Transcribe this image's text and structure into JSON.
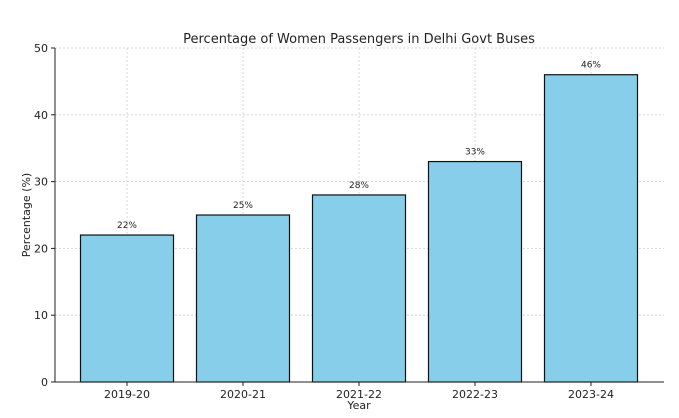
{
  "chart_data": {
    "type": "bar",
    "title": "Percentage of Women Passengers in Delhi Govt Buses",
    "xlabel": "Year",
    "ylabel": "Percentage (%)",
    "categories": [
      "2019-20",
      "2020-21",
      "2021-22",
      "2022-23",
      "2023-24"
    ],
    "values": [
      22,
      25,
      28,
      33,
      46
    ],
    "data_labels": [
      "22%",
      "25%",
      "28%",
      "33%",
      "46%"
    ],
    "ylim": [
      0,
      50
    ],
    "yticks": [
      0,
      10,
      20,
      30,
      40,
      50
    ],
    "ytick_labels": [
      "0",
      "10",
      "20",
      "30",
      "40",
      "50"
    ],
    "grid": true,
    "bar_color": "#87CEEB",
    "edge_color": "#111111"
  }
}
